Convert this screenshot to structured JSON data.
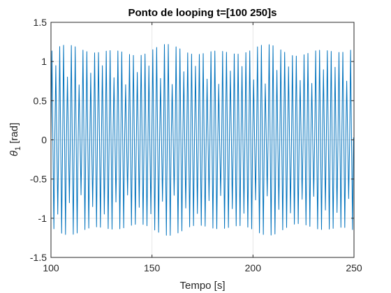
{
  "chart_data": {
    "type": "line",
    "title": "Ponto de looping t=[100 250]s",
    "xlabel": "Tempo [s]",
    "ylabel": {
      "symbol": "θ",
      "subscript": "1",
      "unit": "[rad]"
    },
    "xlim": [
      100,
      250
    ],
    "ylim": [
      -1.5,
      1.5
    ],
    "xticks": [
      100,
      150,
      200,
      250
    ],
    "yticks": [
      -1.5,
      -1,
      -0.5,
      0,
      0.5,
      1,
      1.5
    ],
    "xtick_labels": [
      "100",
      "150",
      "200",
      "250"
    ],
    "ytick_labels": [
      "-1.5",
      "-1",
      "-0.5",
      "0",
      "0.5",
      "1",
      "1.5"
    ],
    "grid": true,
    "series": [
      {
        "color": "#0072BD",
        "signal": {
          "dominant_period": 1.92,
          "peak_amplitude_range": [
            1.05,
            1.22
          ],
          "inner_amplitude_range": [
            0.7,
            0.95
          ]
        }
      }
    ]
  }
}
